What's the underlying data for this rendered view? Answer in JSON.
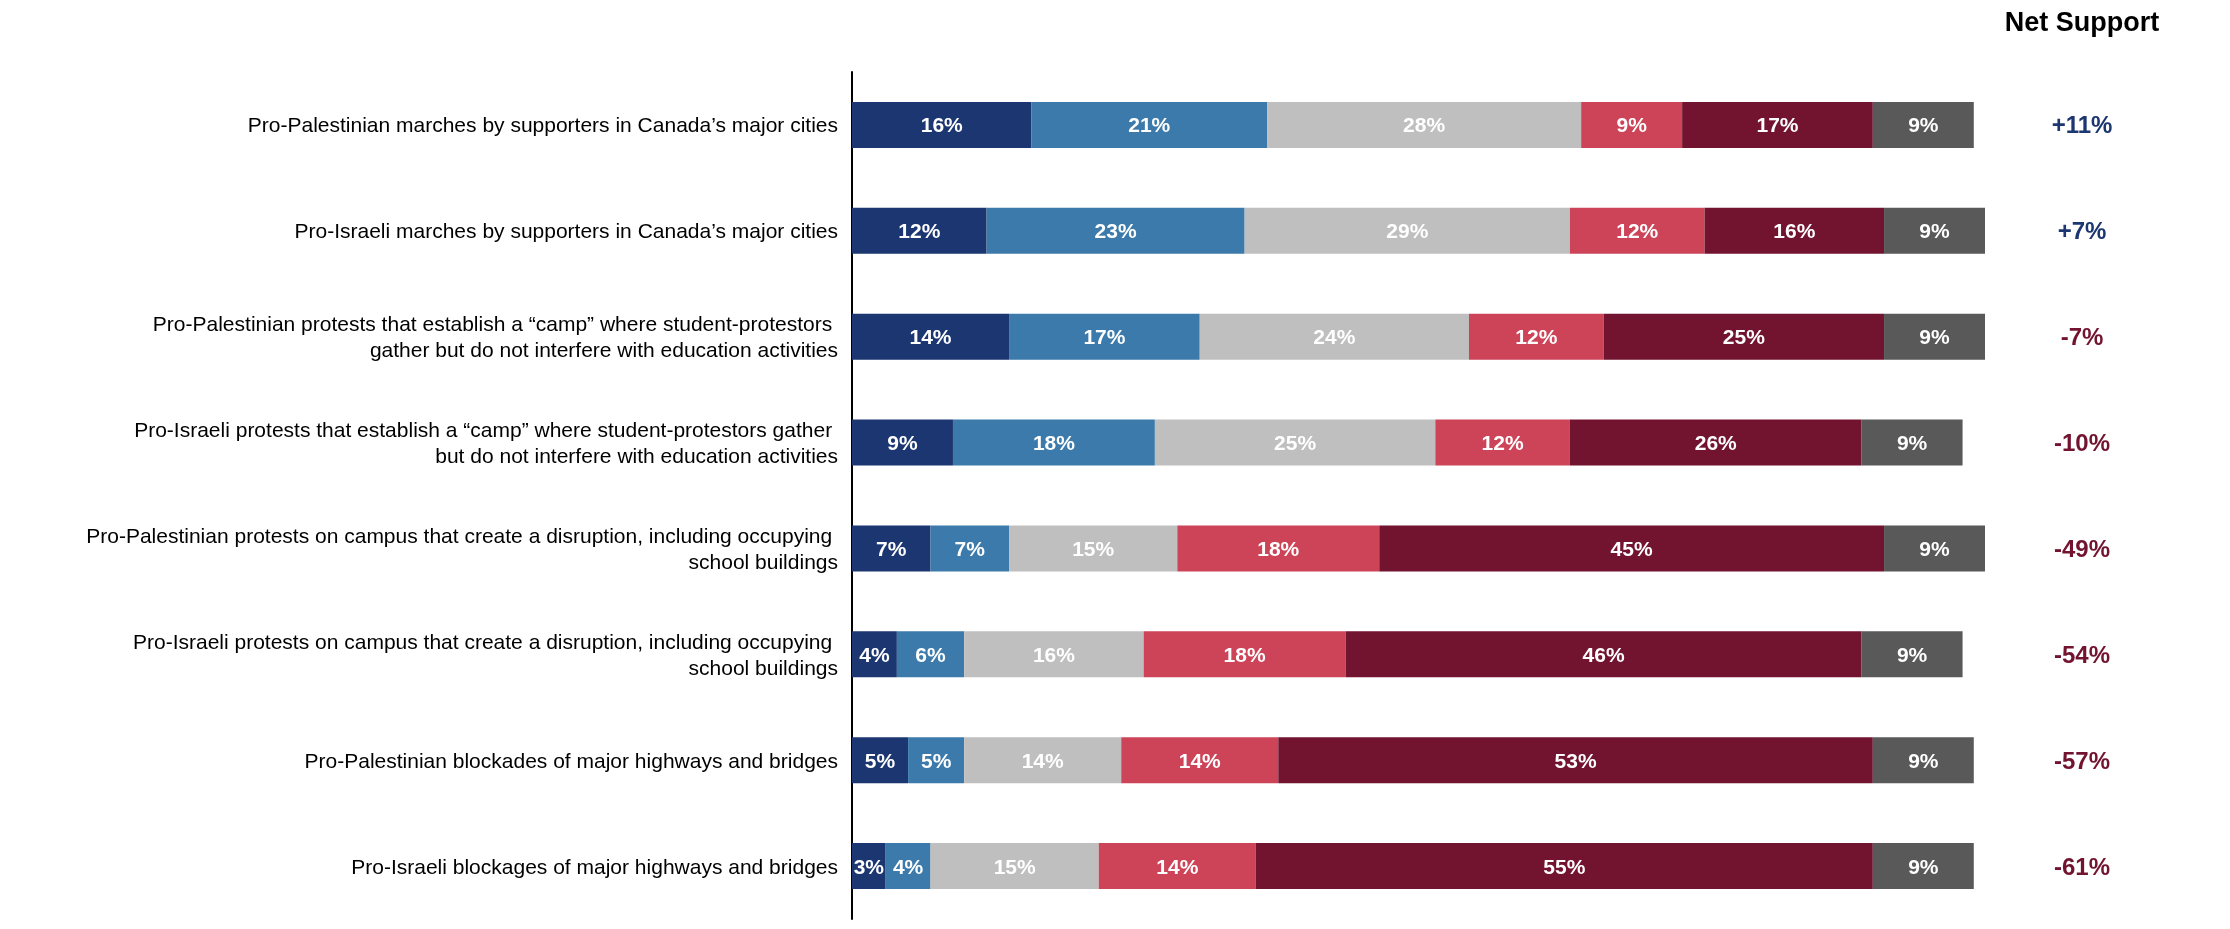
{
  "chart_data": {
    "type": "bar",
    "orientation": "horizontal",
    "stacked": true,
    "tick_labels": "y",
    "categories": [
      "Pro-Palestinian marches by supporters in Canada’s major cities",
      "Pro-Israeli marches by supporters in Canada’s major cities",
      "Pro-Palestinian protests that establish a “camp” where student-protestors gather but do not interfere with education activities",
      "Pro-Israeli protests that establish a “camp” where student-protestors gather but do not interfere with education activities",
      "Pro-Palestinian protests on campus that create a disruption, including occupying school buildings",
      "Pro-Israeli protests on campus that create a disruption, including occupying school buildings",
      "Pro-Palestinian blockades of major highways and bridges",
      "Pro-Israeli blockages of major highways and bridges"
    ],
    "xlim": [
      0,
      101
    ],
    "series": [
      {
        "color": "#1b3670",
        "values": [
          16,
          12,
          14,
          9,
          7,
          4,
          5,
          3
        ],
        "value_labels": [
          "16%",
          "12%",
          "14%",
          "9%",
          "7%",
          "4%",
          "5%",
          "3%"
        ]
      },
      {
        "color": "#3b7aaa",
        "values": [
          21,
          23,
          17,
          18,
          7,
          6,
          5,
          4
        ],
        "value_labels": [
          "21%",
          "23%",
          "17%",
          "18%",
          "7%",
          "6%",
          "5%",
          "4%"
        ]
      },
      {
        "color": "#bfbfbf",
        "values": [
          28,
          29,
          24,
          25,
          15,
          16,
          14,
          15
        ],
        "value_labels": [
          "28%",
          "29%",
          "24%",
          "25%",
          "15%",
          "16%",
          "14%",
          "15%"
        ]
      },
      {
        "color": "#cd4358",
        "values": [
          9,
          12,
          12,
          12,
          18,
          18,
          14,
          14
        ],
        "value_labels": [
          "9%",
          "12%",
          "12%",
          "12%",
          "18%",
          "18%",
          "14%",
          "14%"
        ]
      },
      {
        "color": "#721330",
        "values": [
          17,
          16,
          25,
          26,
          45,
          46,
          53,
          55
        ],
        "value_labels": [
          "17%",
          "16%",
          "25%",
          "26%",
          "45%",
          "46%",
          "53%",
          "55%"
        ]
      },
      {
        "color": "#595959",
        "values": [
          9,
          9,
          9,
          9,
          9,
          9,
          9,
          9
        ],
        "value_labels": [
          "9%",
          "9%",
          "9%",
          "9%",
          "9%",
          "9%",
          "9%",
          "9%"
        ]
      }
    ],
    "annotations": [
      "Net Support",
      "+11%",
      "+7%",
      "-7%",
      "-10%",
      "-49%",
      "-54%",
      "-57%",
      "-61%"
    ]
  }
}
